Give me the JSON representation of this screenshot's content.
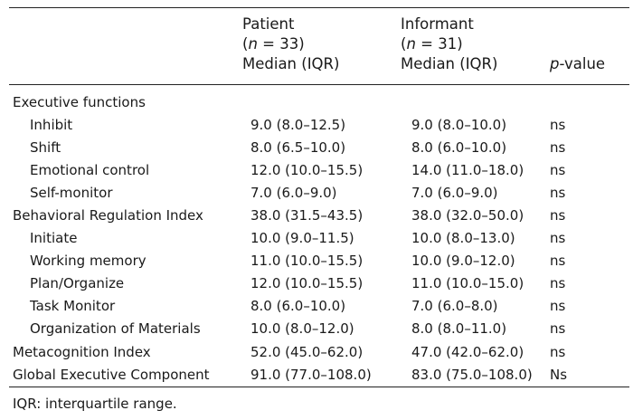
{
  "header": {
    "patient": {
      "line1": "Patient",
      "n_prefix": "(",
      "n_var": "n",
      "n_rest": " = 33)",
      "line3": "Median (IQR)"
    },
    "informant": {
      "line1": "Informant",
      "n_prefix": "(",
      "n_var": "n",
      "n_rest": " = 31)",
      "line3": "Median (IQR)"
    },
    "pvalue": {
      "p_var": "p",
      "rest": "-value"
    }
  },
  "rows": [
    {
      "label": "Executive functions",
      "indent": false,
      "patient": "",
      "informant": "",
      "p": ""
    },
    {
      "label": "Inhibit",
      "indent": true,
      "patient": "9.0 (8.0–12.5)",
      "informant": "9.0 (8.0–10.0)",
      "p": "ns"
    },
    {
      "label": "Shift",
      "indent": true,
      "patient": "8.0 (6.5–10.0)",
      "informant": "8.0 (6.0–10.0)",
      "p": "ns"
    },
    {
      "label": "Emotional control",
      "indent": true,
      "patient": "12.0 (10.0–15.5)",
      "informant": "14.0 (11.0–18.0)",
      "p": "ns"
    },
    {
      "label": "Self-monitor",
      "indent": true,
      "patient": "7.0 (6.0–9.0)",
      "informant": "7.0 (6.0–9.0)",
      "p": "ns"
    },
    {
      "label": "Behavioral Regulation Index",
      "indent": false,
      "patient": "38.0 (31.5–43.5)",
      "informant": "38.0 (32.0–50.0)",
      "p": "ns"
    },
    {
      "label": "Initiate",
      "indent": true,
      "patient": "10.0 (9.0–11.5)",
      "informant": "10.0 (8.0–13.0)",
      "p": "ns"
    },
    {
      "label": "Working memory",
      "indent": true,
      "patient": "11.0 (10.0–15.5)",
      "informant": "10.0 (9.0–12.0)",
      "p": "ns"
    },
    {
      "label": "Plan/Organize",
      "indent": true,
      "patient": "12.0 (10.0–15.5)",
      "informant": "11.0 (10.0–15.0)",
      "p": "ns"
    },
    {
      "label": "Task Monitor",
      "indent": true,
      "patient": "8.0 (6.0–10.0)",
      "informant": "7.0 (6.0–8.0)",
      "p": "ns"
    },
    {
      "label": "Organization of Materials",
      "indent": true,
      "patient": "10.0 (8.0–12.0)",
      "informant": "8.0 (8.0–11.0)",
      "p": "ns"
    },
    {
      "label": "Metacognition Index",
      "indent": false,
      "patient": "52.0 (45.0–62.0)",
      "informant": "47.0 (42.0–62.0)",
      "p": "ns"
    },
    {
      "label": "Global Executive Component",
      "indent": false,
      "patient": "91.0 (77.0–108.0)",
      "informant": "83.0 (75.0–108.0)",
      "p": "Ns"
    }
  ],
  "footnote": "IQR: interquartile range."
}
